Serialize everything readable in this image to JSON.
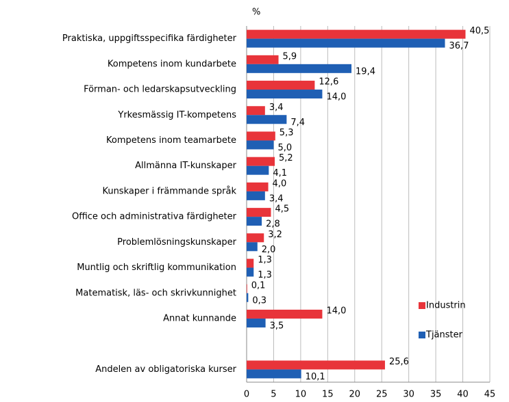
{
  "chart_data": {
    "type": "bar",
    "orientation": "horizontal",
    "unit_label": "%",
    "categories": [
      "Praktiska, uppgiftsspecifika färdigheter",
      "Kompetens inom kundarbete",
      "Förman- och ledarskapsutveckling",
      "Yrkesmässig IT-kompetens",
      "Kompetens inom teamarbete",
      "Allmänna IT-kunskaper",
      "Kunskaper i främmande språk",
      "Office och administrativa färdigheter",
      "Problemlösningskunskaper",
      "Muntlig och skriftlig kommunikation",
      "Matematisk, läs- och skrivkunnighet",
      "Annat kunnande",
      null,
      "Andelen av obligatoriska kurser"
    ],
    "series": [
      {
        "name": "Industrin",
        "color": "#e8343a",
        "values": [
          40.5,
          5.9,
          12.6,
          3.4,
          5.3,
          5.2,
          4.0,
          4.5,
          3.2,
          1.3,
          0.1,
          14.0,
          null,
          25.6
        ],
        "value_labels": [
          "40,5",
          "5,9",
          "12,6",
          "3,4",
          "5,3",
          "5,2",
          "4,0",
          "4,5",
          "3,2",
          "1,3",
          "0,1",
          "14,0",
          null,
          "25,6"
        ]
      },
      {
        "name": "Tjänster",
        "color": "#1f5fb4",
        "values": [
          36.7,
          19.4,
          14.0,
          7.4,
          5.0,
          4.1,
          3.4,
          2.8,
          2.0,
          1.3,
          0.3,
          3.5,
          null,
          10.1
        ],
        "value_labels": [
          "36,7",
          "19,4",
          "14,0",
          "7,4",
          "5,0",
          "4,1",
          "3,4",
          "2,8",
          "2,0",
          "1,3",
          "0,3",
          "3,5",
          null,
          "10,1"
        ]
      }
    ],
    "xlim": [
      0,
      45
    ],
    "xticks": [
      0,
      5,
      10,
      15,
      20,
      25,
      30,
      35,
      40,
      45
    ],
    "grid": true,
    "legend": "lower right"
  }
}
